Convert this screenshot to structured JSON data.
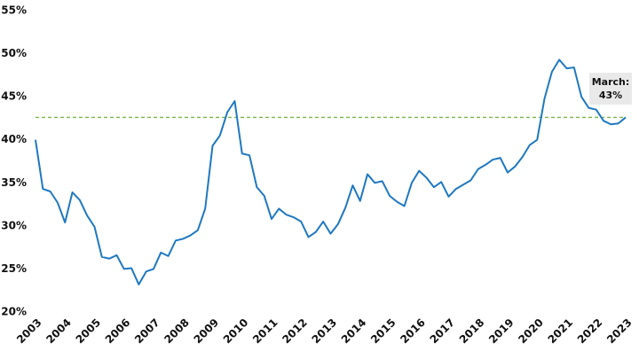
{
  "chart_data": {
    "type": "line",
    "x": [
      2003,
      2003.25,
      2003.5,
      2003.75,
      2004,
      2004.25,
      2004.5,
      2004.75,
      2005,
      2005.25,
      2005.5,
      2005.75,
      2006,
      2006.25,
      2006.5,
      2006.75,
      2007,
      2007.25,
      2007.5,
      2007.75,
      2008,
      2008.25,
      2008.5,
      2008.75,
      2009,
      2009.25,
      2009.5,
      2009.75,
      2010,
      2010.25,
      2010.5,
      2010.75,
      2011,
      2011.25,
      2011.5,
      2011.75,
      2012,
      2012.25,
      2012.5,
      2012.75,
      2013,
      2013.25,
      2013.5,
      2013.75,
      2014,
      2014.25,
      2014.5,
      2014.75,
      2015,
      2015.25,
      2015.5,
      2015.75,
      2016,
      2016.25,
      2016.5,
      2016.75,
      2017,
      2017.25,
      2017.5,
      2017.75,
      2018,
      2018.25,
      2018.5,
      2018.75,
      2019,
      2019.25,
      2019.5,
      2019.75,
      2020,
      2020.25,
      2020.5,
      2020.75,
      2021,
      2021.25,
      2021.5,
      2021.75,
      2022,
      2022.25,
      2022.5,
      2022.75,
      2023
    ],
    "values": [
      40,
      34.3,
      34,
      32.7,
      30.4,
      33.9,
      33,
      31.2,
      29.9,
      26.4,
      26.2,
      26.6,
      25,
      25.1,
      23.2,
      24.7,
      25,
      26.9,
      26.5,
      28.3,
      28.5,
      28.9,
      29.5,
      32,
      39.3,
      40.5,
      43.2,
      44.5,
      38.4,
      38.2,
      34.5,
      33.5,
      30.8,
      32,
      31.3,
      31,
      30.5,
      28.7,
      29.3,
      30.5,
      29.1,
      30.2,
      32.1,
      34.7,
      32.9,
      36,
      35,
      35.2,
      33.5,
      32.8,
      32.3,
      35,
      36.4,
      35.6,
      34.5,
      35.1,
      33.4,
      34.3,
      34.8,
      35.3,
      36.6,
      37.1,
      37.7,
      37.9,
      36.2,
      36.9,
      38,
      39.4,
      40,
      44.8,
      47.9,
      49.3,
      48.3,
      48.4,
      45,
      43.7,
      43.5,
      42.2,
      41.8,
      41.9,
      42.6
    ],
    "color": "#1f78c1",
    "xlim": [
      2003,
      2023
    ],
    "xticks": [
      2003,
      2004,
      2005,
      2006,
      2007,
      2008,
      2009,
      2010,
      2011,
      2012,
      2013,
      2014,
      2015,
      2016,
      2017,
      2018,
      2019,
      2020,
      2021,
      2022,
      2023
    ],
    "ylim": [
      20,
      55
    ],
    "yticks": [
      {
        "value": 20,
        "label": "20%"
      },
      {
        "value": 25,
        "label": "25%"
      },
      {
        "value": 30,
        "label": "30%"
      },
      {
        "value": 35,
        "label": "35%"
      },
      {
        "value": 40,
        "label": "40%"
      },
      {
        "value": 45,
        "label": "45%"
      },
      {
        "value": 50,
        "label": "50%"
      },
      {
        "value": 55,
        "label": "55%"
      }
    ],
    "reference_line": {
      "value": 42.6,
      "color": "#7ab648",
      "dashed": true
    },
    "annotation": "March: 43%"
  }
}
